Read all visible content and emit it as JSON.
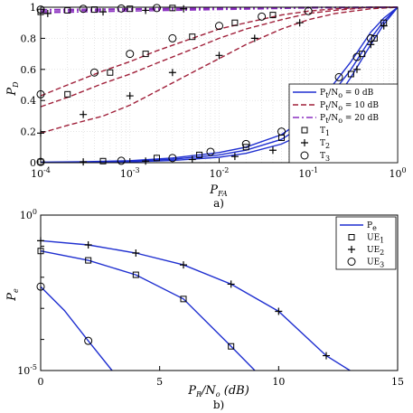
{
  "chart_data": [
    {
      "type": "line",
      "caption": "a)",
      "xlabel": "P_FA",
      "ylabel": "P_D",
      "xscale": "log",
      "xlim": [
        0.0001,
        1
      ],
      "ylim": [
        0,
        1
      ],
      "xticks": [
        "10^-4",
        "10^-3",
        "10^-2",
        "10^-1",
        "10^0"
      ],
      "yticks": [
        "0",
        "0.2",
        "0.4",
        "0.6",
        "0.8",
        "1"
      ],
      "grid": "dotted",
      "legend_position": "bottom-right",
      "series": [
        {
          "name": "Pt/No = 0 dB",
          "style": "solid",
          "color": "#1f2fd0",
          "lines": [
            {
              "x": [
                0.0001,
                0.0003,
                0.001,
                0.003,
                0.01,
                0.02,
                0.05,
                0.1,
                0.2,
                0.3,
                0.5,
                0.7,
                1
              ],
              "y": [
                0.003,
                0.006,
                0.013,
                0.03,
                0.065,
                0.1,
                0.18,
                0.3,
                0.52,
                0.65,
                0.84,
                0.93,
                1
              ]
            },
            {
              "x": [
                0.0001,
                0.0003,
                0.001,
                0.003,
                0.01,
                0.02,
                0.05,
                0.1,
                0.2,
                0.3,
                0.5,
                0.7,
                1
              ],
              "y": [
                0.002,
                0.004,
                0.01,
                0.022,
                0.05,
                0.08,
                0.15,
                0.26,
                0.47,
                0.6,
                0.8,
                0.91,
                1
              ]
            },
            {
              "x": [
                0.0001,
                0.0003,
                0.001,
                0.003,
                0.01,
                0.02,
                0.05,
                0.1,
                0.2,
                0.3,
                0.5,
                0.7,
                1
              ],
              "y": [
                0.001,
                0.003,
                0.006,
                0.014,
                0.035,
                0.06,
                0.12,
                0.2,
                0.4,
                0.55,
                0.76,
                0.89,
                1
              ]
            }
          ]
        },
        {
          "name": "Pt/No = 10 dB",
          "style": "dashed",
          "color": "#a0203a",
          "lines": [
            {
              "x": [
                0.0001,
                0.0002,
                0.0005,
                0.001,
                0.002,
                0.005,
                0.01,
                0.02,
                0.05,
                0.1,
                0.2,
                0.5,
                1
              ],
              "y": [
                0.43,
                0.5,
                0.59,
                0.65,
                0.72,
                0.8,
                0.86,
                0.9,
                0.95,
                0.975,
                0.99,
                1,
                1
              ]
            },
            {
              "x": [
                0.0001,
                0.0002,
                0.0005,
                0.001,
                0.002,
                0.005,
                0.01,
                0.02,
                0.05,
                0.1,
                0.2,
                0.5,
                1
              ],
              "y": [
                0.36,
                0.42,
                0.51,
                0.57,
                0.64,
                0.73,
                0.8,
                0.86,
                0.92,
                0.96,
                0.98,
                1,
                1
              ]
            },
            {
              "x": [
                0.0001,
                0.0002,
                0.0005,
                0.001,
                0.002,
                0.005,
                0.01,
                0.02,
                0.05,
                0.1,
                0.2,
                0.5,
                1
              ],
              "y": [
                0.19,
                0.24,
                0.3,
                0.37,
                0.46,
                0.58,
                0.67,
                0.76,
                0.86,
                0.92,
                0.96,
                0.99,
                1
              ]
            }
          ]
        },
        {
          "name": "Pt/No = 20 dB",
          "style": "dashdot",
          "color": "#8a2fc0",
          "lines": [
            {
              "x": [
                0.0001,
                0.001,
                0.01,
                0.1,
                1
              ],
              "y": [
                0.985,
                0.99,
                0.995,
                1,
                1
              ]
            },
            {
              "x": [
                0.0001,
                0.001,
                0.01,
                0.1,
                1
              ],
              "y": [
                0.975,
                0.985,
                0.99,
                0.998,
                1
              ]
            },
            {
              "x": [
                0.0001,
                0.001,
                0.01,
                0.1,
                1
              ],
              "y": [
                0.965,
                0.975,
                0.985,
                0.995,
                1
              ]
            }
          ]
        }
      ],
      "markers": [
        {
          "name": "T1",
          "symbol": "square",
          "points": [
            [
              0.0001,
              0.97
            ],
            [
              0.0002,
              0.98
            ],
            [
              0.0004,
              0.985
            ],
            [
              0.001,
              0.99
            ],
            [
              0.003,
              0.995
            ],
            [
              0.0002,
              0.44
            ],
            [
              0.0006,
              0.58
            ],
            [
              0.0015,
              0.7
            ],
            [
              0.005,
              0.81
            ],
            [
              0.015,
              0.9
            ],
            [
              0.04,
              0.95
            ],
            [
              0.0001,
              0.005
            ],
            [
              0.0005,
              0.01
            ],
            [
              0.002,
              0.03
            ],
            [
              0.006,
              0.05
            ],
            [
              0.02,
              0.1
            ],
            [
              0.05,
              0.16
            ],
            [
              0.12,
              0.32
            ],
            [
              0.2,
              0.47
            ],
            [
              0.3,
              0.57
            ],
            [
              0.4,
              0.7
            ],
            [
              0.55,
              0.8
            ],
            [
              0.7,
              0.9
            ]
          ]
        },
        {
          "name": "T2",
          "symbol": "plus",
          "points": [
            [
              0.00012,
              0.96
            ],
            [
              0.0005,
              0.97
            ],
            [
              0.0015,
              0.98
            ],
            [
              0.004,
              0.99
            ],
            [
              0.0001,
              0.19
            ],
            [
              0.0003,
              0.31
            ],
            [
              0.001,
              0.43
            ],
            [
              0.003,
              0.58
            ],
            [
              0.01,
              0.69
            ],
            [
              0.025,
              0.8
            ],
            [
              0.08,
              0.9
            ],
            [
              0.0003,
              0.005
            ],
            [
              0.0015,
              0.01
            ],
            [
              0.005,
              0.02
            ],
            [
              0.015,
              0.04
            ],
            [
              0.04,
              0.08
            ],
            [
              0.1,
              0.18
            ],
            [
              0.2,
              0.4
            ],
            [
              0.35,
              0.6
            ],
            [
              0.5,
              0.76
            ],
            [
              0.7,
              0.88
            ]
          ]
        },
        {
          "name": "T3",
          "symbol": "circle",
          "points": [
            [
              0.0001,
              0.985
            ],
            [
              0.0003,
              0.99
            ],
            [
              0.0008,
              0.992
            ],
            [
              0.002,
              0.995
            ],
            [
              0.0001,
              0.44
            ],
            [
              0.0004,
              0.58
            ],
            [
              0.001,
              0.7
            ],
            [
              0.003,
              0.8
            ],
            [
              0.01,
              0.88
            ],
            [
              0.03,
              0.94
            ],
            [
              0.1,
              0.975
            ],
            [
              0.0001,
              0.005
            ],
            [
              0.0008,
              0.012
            ],
            [
              0.003,
              0.03
            ],
            [
              0.008,
              0.07
            ],
            [
              0.02,
              0.12
            ],
            [
              0.05,
              0.2
            ],
            [
              0.12,
              0.33
            ],
            [
              0.22,
              0.55
            ],
            [
              0.35,
              0.68
            ],
            [
              0.5,
              0.8
            ]
          ]
        }
      ],
      "legend": [
        {
          "label": "Pt/No = 0 dB",
          "kind": "solid",
          "color": "#1f2fd0"
        },
        {
          "label": "Pt/No = 10 dB",
          "kind": "dashed",
          "color": "#a0203a"
        },
        {
          "label": "Pt/No = 20 dB",
          "kind": "dashdot",
          "color": "#8a2fc0"
        },
        {
          "label": "T1",
          "kind": "square"
        },
        {
          "label": "T2",
          "kind": "plus"
        },
        {
          "label": "T3",
          "kind": "circle"
        }
      ]
    },
    {
      "type": "line",
      "caption": "b)",
      "xlabel": "PR/No (dB)",
      "ylabel": "Pe",
      "yscale": "log",
      "xlim": [
        0,
        15
      ],
      "ylim": [
        1e-05,
        1
      ],
      "xticks": [
        "0",
        "5",
        "10",
        "15"
      ],
      "yticks": [
        "10^0",
        "10^-5"
      ],
      "legend_position": "top-right",
      "series": [
        {
          "name": "Pe",
          "style": "solid",
          "color": "#1f2fd0",
          "lines": [
            {
              "x": [
                0,
                2,
                4,
                6,
                8,
                10,
                12,
                13
              ],
              "y": [
                0.15,
                0.11,
                0.06,
                0.025,
                0.006,
                0.0008,
                3e-05,
                1e-05
              ]
            },
            {
              "x": [
                0,
                2,
                4,
                6,
                8,
                9
              ],
              "y": [
                0.07,
                0.035,
                0.012,
                0.002,
                6e-05,
                1e-05
              ]
            },
            {
              "x": [
                0,
                1,
                2,
                3
              ],
              "y": [
                0.005,
                0.00085,
                9e-05,
                1e-05
              ]
            }
          ]
        }
      ],
      "markers": [
        {
          "name": "UE1",
          "symbol": "square",
          "points": [
            [
              0,
              0.07
            ],
            [
              2,
              0.035
            ],
            [
              4,
              0.012
            ],
            [
              6,
              0.002
            ],
            [
              8,
              6e-05
            ]
          ]
        },
        {
          "name": "UE2",
          "symbol": "plus",
          "points": [
            [
              0,
              0.15
            ],
            [
              2,
              0.11
            ],
            [
              4,
              0.06
            ],
            [
              6,
              0.025
            ],
            [
              8,
              0.006
            ],
            [
              10,
              0.0008
            ],
            [
              12,
              3e-05
            ]
          ]
        },
        {
          "name": "UE3",
          "symbol": "circle",
          "points": [
            [
              0,
              0.005
            ],
            [
              2,
              9e-05
            ]
          ]
        }
      ],
      "legend": [
        {
          "label": "Pe",
          "kind": "solid",
          "color": "#1f2fd0"
        },
        {
          "label": "UE1",
          "kind": "square"
        },
        {
          "label": "UE2",
          "kind": "plus"
        },
        {
          "label": "UE3",
          "kind": "circle"
        }
      ]
    }
  ]
}
